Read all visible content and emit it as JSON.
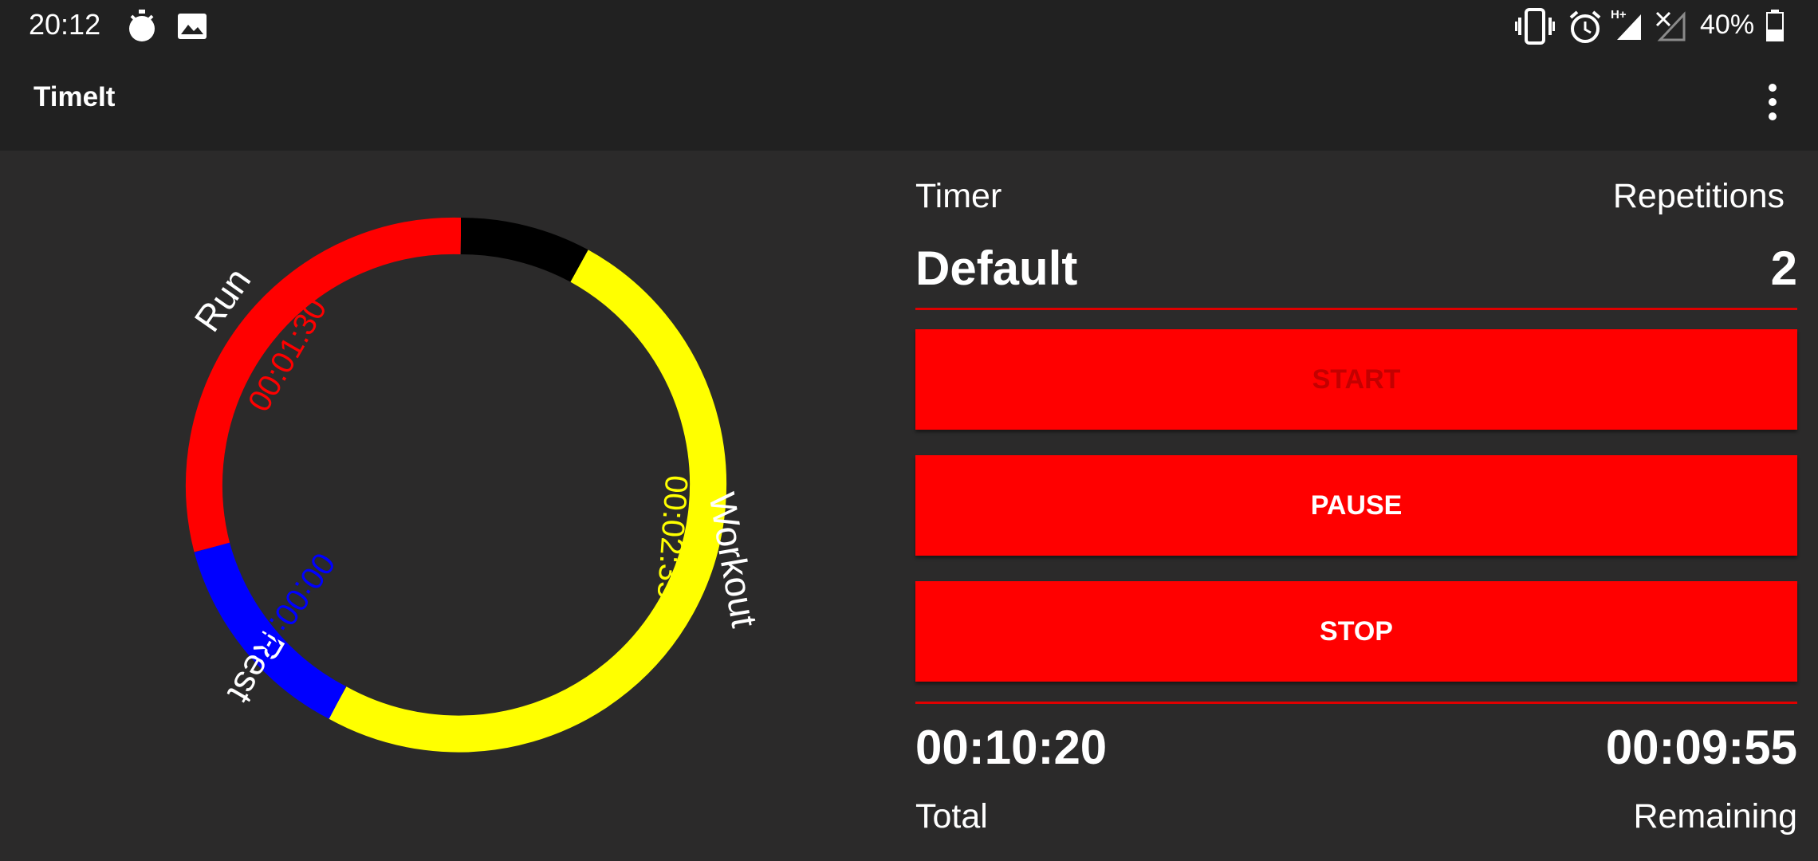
{
  "status_bar": {
    "time": "20:12",
    "battery": "40%",
    "network": "H+",
    "icons": [
      "stopwatch-icon",
      "image-icon",
      "vibrate-icon",
      "alarm-icon",
      "signal-icon",
      "no-signal-icon",
      "battery-icon"
    ]
  },
  "app_bar": {
    "title": "TimeIt",
    "menu_icon": "more-vert-icon"
  },
  "ring": {
    "segments": [
      {
        "name": "Run",
        "duration": "00:01:30",
        "color": "#ff0000"
      },
      {
        "name": "Workout",
        "duration": "00:02:35",
        "color": "#ffff00"
      },
      {
        "name": "Rest",
        "duration": "00:00:40",
        "color": "#0000ff"
      }
    ],
    "progress_color": "#000000"
  },
  "timer": {
    "label": "Timer",
    "value": "Default"
  },
  "repetitions": {
    "label": "Repetitions",
    "value": "2"
  },
  "buttons": {
    "start": "START",
    "pause": "PAUSE",
    "stop": "STOP"
  },
  "total": {
    "value": "00:10:20",
    "label": "Total"
  },
  "remaining": {
    "value": "00:09:55",
    "label": "Remaining"
  },
  "colors": {
    "accent": "#ff0000",
    "background": "#2b2a2a",
    "bar": "#212121"
  }
}
